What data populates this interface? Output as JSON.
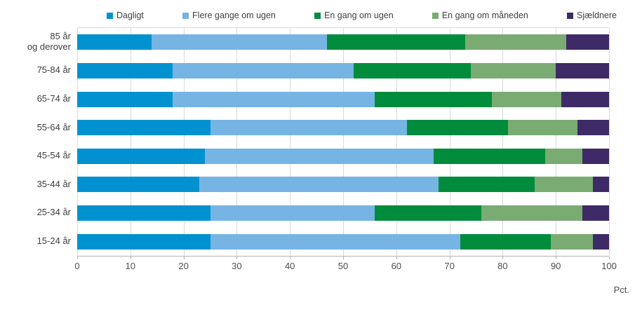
{
  "chart_data": {
    "type": "bar",
    "orientation": "horizontal",
    "stacked": true,
    "title": "",
    "unit_label": "Pct.",
    "xlim": [
      0,
      100
    ],
    "x_ticks": [
      0,
      10,
      20,
      30,
      40,
      50,
      60,
      70,
      80,
      90,
      100
    ],
    "grid": "vertical",
    "legend_position": "top",
    "categories": [
      "85 år\nog derover",
      "75-84 år",
      "65-74 år",
      "55-64 år",
      "45-54 år",
      "35-44 år",
      "25-34 år",
      "15-24 år"
    ],
    "series": [
      {
        "name": "Dagligt",
        "color": "#0092d0",
        "values": [
          14,
          18,
          18,
          25,
          24,
          23,
          25,
          25
        ]
      },
      {
        "name": "Flere gange om ugen",
        "color": "#76b4e3",
        "values": [
          33,
          34,
          38,
          37,
          43,
          45,
          31,
          47
        ]
      },
      {
        "name": "En gang om ugen",
        "color": "#008c3c",
        "values": [
          26,
          22,
          22,
          19,
          21,
          18,
          20,
          17
        ]
      },
      {
        "name": "En gang om måneden",
        "color": "#7aab73",
        "values": [
          19,
          16,
          13,
          13,
          7,
          11,
          19,
          8
        ]
      },
      {
        "name": "Sjældnere",
        "color": "#3f2a68",
        "values": [
          8,
          10,
          9,
          6,
          5,
          3,
          5,
          3
        ]
      }
    ]
  },
  "colors": {
    "gridline": "#d9d9d9",
    "axis_line": "#b3b3b3",
    "text": "#404040",
    "tick_text": "#4d4d4d",
    "background": "#ffffff"
  }
}
